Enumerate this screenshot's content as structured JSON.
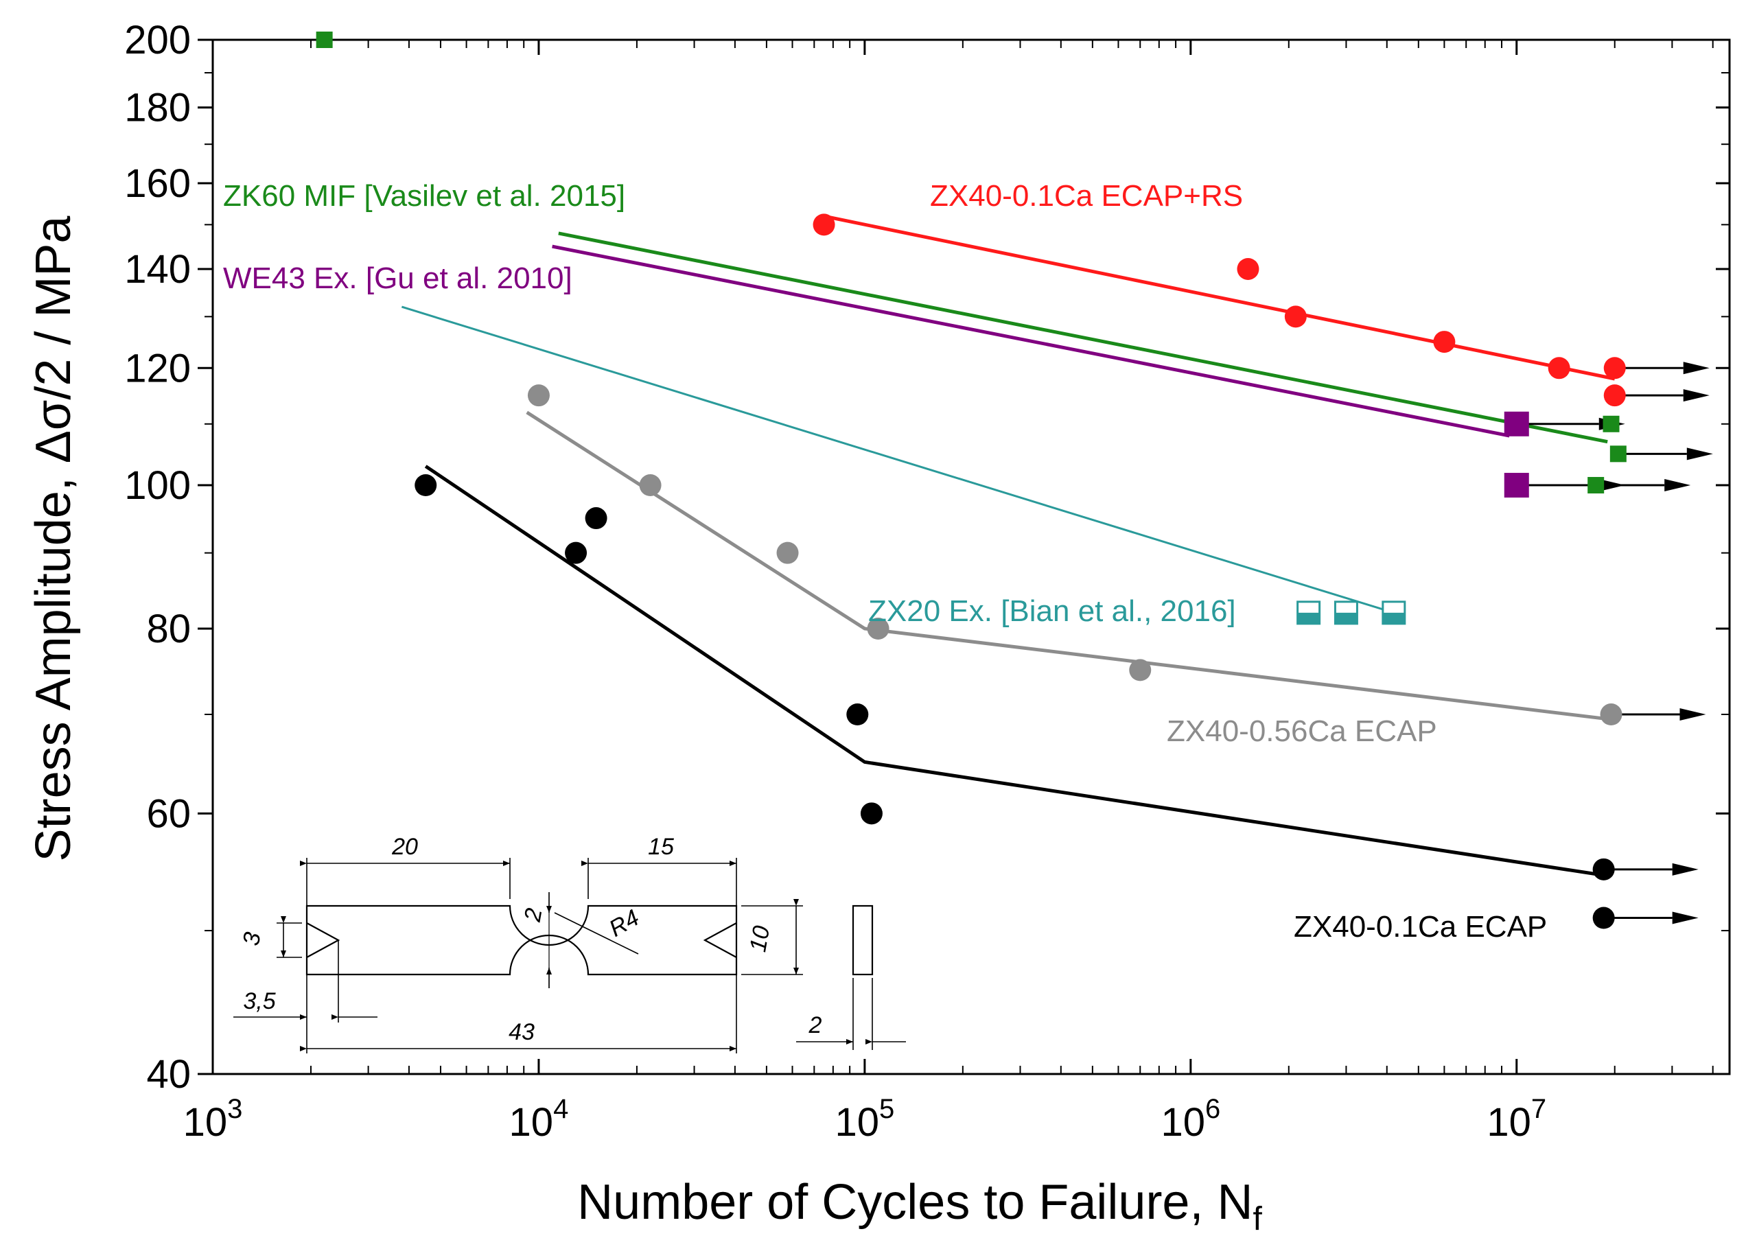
{
  "chart_data": {
    "type": "scatter",
    "title": "",
    "xlabel": "Number of Cycles to Failure, N",
    "xlabel_sub": "f",
    "ylabel": "Stress Amplitude, Δσ/2 / MPa",
    "xscale": "log",
    "yscale": "log",
    "xlim": [
      1000,
      45000000
    ],
    "ylim": [
      40,
      200
    ],
    "x_ticks": [
      {
        "value": 1000,
        "base": "10",
        "exp": "3"
      },
      {
        "value": 10000,
        "base": "10",
        "exp": "4"
      },
      {
        "value": 100000,
        "base": "10",
        "exp": "5"
      },
      {
        "value": 1000000,
        "base": "10",
        "exp": "6"
      },
      {
        "value": 10000000,
        "base": "10",
        "exp": "7"
      }
    ],
    "y_ticks": [
      {
        "value": 40,
        "label": "40"
      },
      {
        "value": 60,
        "label": "60"
      },
      {
        "value": 80,
        "label": "80"
      },
      {
        "value": 100,
        "label": "100"
      },
      {
        "value": 120,
        "label": "120"
      },
      {
        "value": 140,
        "label": "140"
      },
      {
        "value": 160,
        "label": "160"
      },
      {
        "value": 180,
        "label": "180"
      },
      {
        "value": 200,
        "label": "200"
      }
    ],
    "series": [
      {
        "name": "ZX40-0.1Ca ECAP+RS",
        "color": "#ff1a1a",
        "marker": "circle",
        "points": [
          [
            75000,
            150
          ],
          [
            1500000,
            140
          ],
          [
            2100000,
            130
          ],
          [
            6000000,
            125
          ],
          [
            13500000,
            120
          ],
          [
            20000000,
            120
          ],
          [
            20000000,
            115
          ]
        ],
        "fit": [
          [
            75000,
            152
          ],
          [
            20000000,
            118
          ]
        ],
        "runouts": [
          [
            20000000,
            120
          ],
          [
            20000000,
            115
          ]
        ]
      },
      {
        "name": "ZK60 MIF [Vasilev et al. 2015]",
        "color": "#1a8a1a",
        "marker": "square-small",
        "points": [
          [
            2200,
            200
          ],
          [
            19500000,
            110
          ],
          [
            20500000,
            105
          ],
          [
            17500000,
            100
          ]
        ],
        "fit": [
          [
            11500,
            148
          ],
          [
            19000000,
            107
          ]
        ],
        "runouts": [
          [
            20500000,
            105
          ],
          [
            17500000,
            100
          ]
        ]
      },
      {
        "name": "WE43 Ex. [Gu et al. 2010]",
        "color": "#800080",
        "marker": "square",
        "points": [
          [
            10000000,
            110
          ],
          [
            10000000,
            100
          ]
        ],
        "fit": [
          [
            11000,
            145
          ],
          [
            9500000,
            108
          ]
        ],
        "runouts": [
          [
            10000000,
            110
          ],
          [
            10000000,
            100
          ]
        ]
      },
      {
        "name": "ZX20 Ex. [Bian et al., 2016]",
        "color": "#2a9a9a",
        "marker": "square-half-open",
        "points": [
          [
            2300000,
            82
          ],
          [
            3000000,
            82
          ],
          [
            4200000,
            82
          ]
        ],
        "fit": [
          [
            3800,
            132
          ],
          [
            4200000,
            82
          ]
        ],
        "runouts": []
      },
      {
        "name": "ZX40-0.56Ca ECAP",
        "color": "#8c8c8c",
        "marker": "circle",
        "points": [
          [
            10000,
            115
          ],
          [
            22000,
            100
          ],
          [
            58000,
            90
          ],
          [
            110000,
            80
          ],
          [
            700000,
            75
          ],
          [
            19500000,
            70
          ]
        ],
        "fit": [
          [
            9200,
            112
          ],
          [
            100000,
            80
          ],
          [
            19000000,
            69.5
          ]
        ],
        "runouts": [
          [
            19500000,
            70
          ]
        ]
      },
      {
        "name": "ZX40-0.1Ca ECAP",
        "color": "#000000",
        "marker": "circle",
        "points": [
          [
            4500,
            100
          ],
          [
            13000,
            90
          ],
          [
            15000,
            95
          ],
          [
            95000,
            70
          ],
          [
            105000,
            60
          ],
          [
            18500000,
            55
          ],
          [
            18500000,
            51
          ]
        ],
        "fit": [
          [
            4500,
            103
          ],
          [
            100000,
            65
          ],
          [
            18500000,
            54.5
          ]
        ],
        "runouts": [
          [
            18500000,
            55
          ],
          [
            18500000,
            51
          ]
        ]
      }
    ],
    "inset": {
      "description_labels": [
        "20",
        "15",
        "2",
        "R4",
        "3",
        "10",
        "3,5",
        "43",
        "2"
      ]
    }
  }
}
